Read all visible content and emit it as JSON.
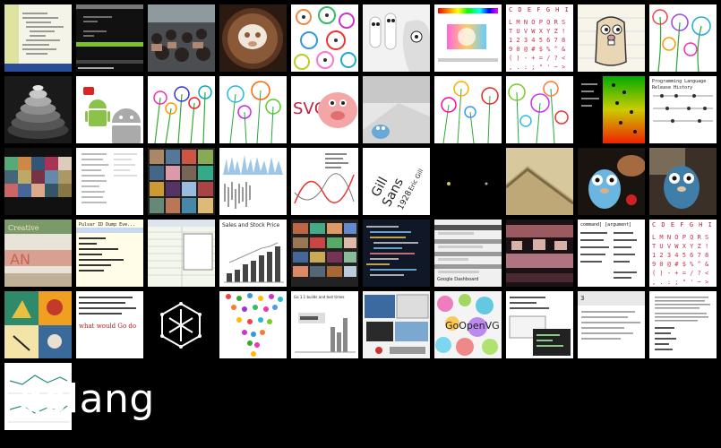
{
  "gallery": {
    "caption": "golang",
    "colors": {
      "background": "#000000",
      "caption": "#ffffff"
    },
    "tiles": [
      {
        "name": "tile-code-editor",
        "label": ""
      },
      {
        "name": "tile-terminal",
        "label": ""
      },
      {
        "name": "tile-audience-photo",
        "label": ""
      },
      {
        "name": "tile-latte-art",
        "label": ""
      },
      {
        "name": "tile-colorful-flowers",
        "label": ""
      },
      {
        "name": "tile-gopher-sticks",
        "label": ""
      },
      {
        "name": "tile-color-picker",
        "label": ""
      },
      {
        "name": "tile-font-chart",
        "label": "C D E F G H I J K"
      },
      {
        "name": "tile-gopher-sketch",
        "label": ""
      },
      {
        "name": "tile-flower-burst",
        "label": ""
      },
      {
        "name": "tile-gradient-cone",
        "label": ""
      },
      {
        "name": "tile-android-robots",
        "label": ""
      },
      {
        "name": "tile-flower-field-1",
        "label": ""
      },
      {
        "name": "tile-flower-field-2",
        "label": ""
      },
      {
        "name": "tile-svg-pig",
        "label": "SVG"
      },
      {
        "name": "tile-gopher-photo",
        "label": ""
      },
      {
        "name": "tile-flower-field-3",
        "label": ""
      },
      {
        "name": "tile-flower-field-4",
        "label": ""
      },
      {
        "name": "tile-color-dots",
        "label": ""
      },
      {
        "name": "tile-language-history",
        "label": "Programming Language Release History"
      },
      {
        "name": "tile-photo-mosaic",
        "label": ""
      },
      {
        "name": "tile-list-view",
        "label": ""
      },
      {
        "name": "tile-photo-grid",
        "label": ""
      },
      {
        "name": "tile-wave-chart",
        "label": ""
      },
      {
        "name": "tile-text-waves",
        "label": ""
      },
      {
        "name": "tile-gill-sans",
        "label": "Gill Sans 1928 Eric Gill"
      },
      {
        "name": "tile-dark-dots",
        "label": ""
      },
      {
        "name": "tile-blur-photo",
        "label": ""
      },
      {
        "name": "tile-blue-gopher",
        "label": ""
      },
      {
        "name": "tile-gopher-plush",
        "label": ""
      },
      {
        "name": "tile-pulsar",
        "label": "Pulsar ID Dump Eve..."
      },
      {
        "name": "tile-spreadsheet",
        "label": ""
      },
      {
        "name": "tile-stock-chart",
        "label": "Sales and Stock Price"
      },
      {
        "name": "tile-film-strip",
        "label": ""
      },
      {
        "name": "tile-code-screen",
        "label": ""
      },
      {
        "name": "tile-google-dashboard",
        "label": "Google Dashboard"
      },
      {
        "name": "tile-pixel-photo",
        "label": ""
      },
      {
        "name": "tile-command-list",
        "label": "command] [argument]"
      },
      {
        "name": "tile-font-chart-2",
        "label": "C D E F G H I J K"
      },
      {
        "name": "tile-stamp-collage",
        "label": ""
      },
      {
        "name": "tile-quote",
        "label": "what would Go do"
      },
      {
        "name": "tile-logo-pattern",
        "label": ""
      },
      {
        "name": "tile-confetti-funnel",
        "label": ""
      },
      {
        "name": "tile-bar-report",
        "label": "Go 1.1 builds and test times"
      },
      {
        "name": "tile-desktop-screens",
        "label": ""
      },
      {
        "name": "tile-gopenvg-bubbles",
        "label": "GoOpenVG"
      },
      {
        "name": "tile-notes-window",
        "label": ""
      },
      {
        "name": "tile-doc-page",
        "label": ""
      },
      {
        "name": "tile-text-doc",
        "label": ""
      },
      {
        "name": "tile-line-chart",
        "label": ""
      }
    ]
  }
}
